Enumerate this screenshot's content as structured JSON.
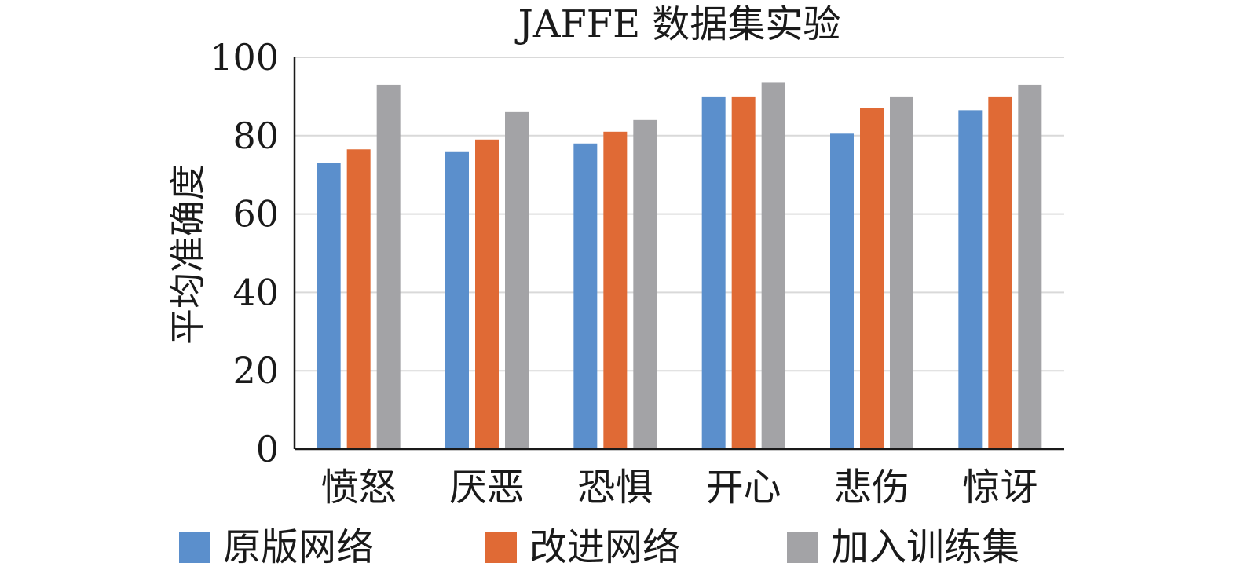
{
  "chart_data": {
    "type": "bar",
    "title": "JAFFE 数据集实验",
    "xlabel": "",
    "ylabel": "平均准确度",
    "ylim": [
      0,
      100
    ],
    "yticks": [
      0,
      20,
      40,
      60,
      80,
      100
    ],
    "grid": true,
    "legend_position": "bottom",
    "categories": [
      "愤怒",
      "厌恶",
      "恐惧",
      "开心",
      "悲伤",
      "惊讶"
    ],
    "series": [
      {
        "name": "原版网络",
        "color": "#5b8fcc",
        "values": [
          73,
          76,
          78,
          90,
          80.5,
          86.5
        ]
      },
      {
        "name": "改进网络",
        "color": "#e06a35",
        "values": [
          76.5,
          79,
          81,
          90,
          87,
          90
        ]
      },
      {
        "name": "加入训练集",
        "color": "#a3a3a6",
        "values": [
          93,
          86,
          84,
          93.5,
          90,
          93
        ]
      }
    ]
  }
}
